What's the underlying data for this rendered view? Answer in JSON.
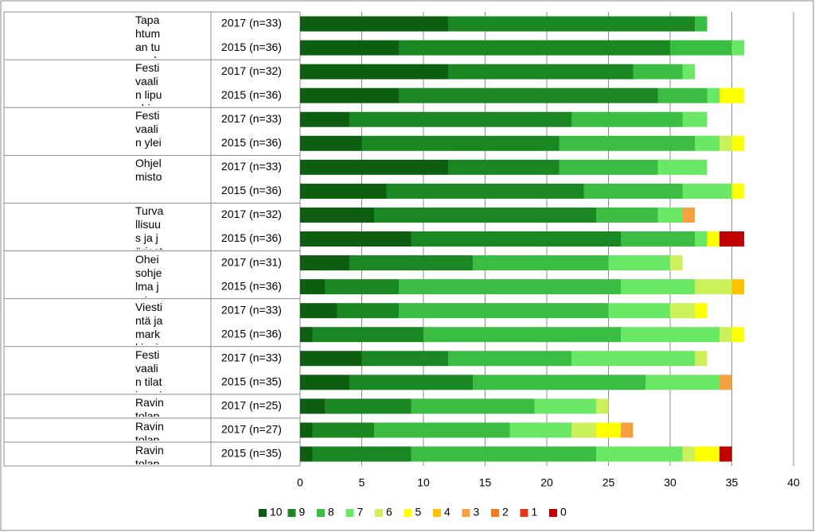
{
  "chart_data": {
    "type": "stacked_barh",
    "category_groups": [
      {
        "group": "Tapahtuman tunnelma",
        "labels": [
          "2017 (n=33)",
          "2015 (n=36)"
        ]
      },
      {
        "group": "Festivaalin lipunhinnan hinta-laatusuhde",
        "labels": [
          "2017 (n=32)",
          "2015 (n=36)"
        ]
      },
      {
        "group": "Festivaalin yleinen asiakaspalvelu",
        "labels": [
          "2017 (n=33)",
          "2015 (n=36)"
        ]
      },
      {
        "group": "Ohjelmisto",
        "labels": [
          "2017 (n=33)",
          "2015 (n=36)"
        ]
      },
      {
        "group": "Turvallisuus ja järjestyksenvalvonta",
        "labels": [
          "2017 (n=32)",
          "2015 (n=36)"
        ]
      },
      {
        "group": "Oheisohjelma ja tapahtumat",
        "labels": [
          "2017 (n=31)",
          "2015 (n=36)"
        ]
      },
      {
        "group": "Viestintä ja markkinointi",
        "labels": [
          "2017 (n=33)",
          "2015 (n=36)"
        ]
      },
      {
        "group": "Festivaalin tilat ja puitteet",
        "labels": [
          "2017 (n=33)",
          "2015 (n=35)"
        ]
      },
      {
        "group": "Ravintolapalvelut (anniskelu)",
        "labels": [
          "2017 (n=25)"
        ]
      },
      {
        "group": "Ravintolapalvelut (ruokailu)",
        "labels": [
          "2017 (n=27)"
        ]
      },
      {
        "group": "Ravintolapalvelut (ruokailu ja anniskelu)",
        "labels": [
          "2015 (n=35)"
        ]
      }
    ],
    "series": [
      {
        "name": "10",
        "color": "#0e5e12",
        "values": [
          12,
          8,
          12,
          8,
          4,
          5,
          12,
          7,
          6,
          9,
          4,
          2,
          3,
          1,
          5,
          4,
          2,
          1,
          1
        ]
      },
      {
        "name": "9",
        "color": "#1b8722",
        "values": [
          20,
          22,
          15,
          21,
          18,
          16,
          9,
          16,
          18,
          17,
          10,
          6,
          5,
          9,
          7,
          10,
          7,
          5,
          8
        ]
      },
      {
        "name": "8",
        "color": "#3bbd43",
        "values": [
          1,
          5,
          4,
          4,
          9,
          11,
          8,
          8,
          5,
          6,
          11,
          18,
          17,
          16,
          10,
          14,
          10,
          11,
          15
        ]
      },
      {
        "name": "7",
        "color": "#6ae865",
        "values": [
          0,
          1,
          1,
          1,
          2,
          2,
          4,
          4,
          2,
          1,
          5,
          6,
          5,
          8,
          10,
          6,
          5,
          5,
          7
        ]
      },
      {
        "name": "6",
        "color": "#ccf05a",
        "values": [
          0,
          0,
          0,
          0,
          0,
          1,
          0,
          0,
          0,
          0,
          1,
          3,
          2,
          1,
          1,
          0,
          1,
          2,
          1
        ]
      },
      {
        "name": "5",
        "color": "#ffff00",
        "values": [
          0,
          0,
          0,
          2,
          0,
          1,
          0,
          1,
          0,
          1,
          0,
          0,
          1,
          1,
          0,
          0,
          0,
          2,
          2
        ]
      },
      {
        "name": "4",
        "color": "#ffc000",
        "values": [
          0,
          0,
          0,
          0,
          0,
          0,
          0,
          0,
          0,
          0,
          0,
          1,
          0,
          0,
          0,
          0,
          0,
          0,
          0
        ]
      },
      {
        "name": "3",
        "color": "#f5a142",
        "values": [
          0,
          0,
          0,
          0,
          0,
          0,
          0,
          0,
          1,
          0,
          0,
          0,
          0,
          0,
          0,
          1,
          0,
          1,
          0
        ]
      },
      {
        "name": "2",
        "color": "#f47a20",
        "values": [
          0,
          0,
          0,
          0,
          0,
          0,
          0,
          0,
          0,
          0,
          0,
          0,
          0,
          0,
          0,
          0,
          0,
          0,
          0
        ]
      },
      {
        "name": "1",
        "color": "#e8381a",
        "values": [
          0,
          0,
          0,
          0,
          0,
          0,
          0,
          0,
          0,
          0,
          0,
          0,
          0,
          0,
          0,
          0,
          0,
          0,
          0
        ]
      },
      {
        "name": "0",
        "color": "#c00000",
        "values": [
          0,
          0,
          0,
          0,
          0,
          0,
          0,
          0,
          0,
          2,
          0,
          0,
          0,
          0,
          0,
          0,
          0,
          0,
          1
        ]
      }
    ],
    "xlim": [
      0,
      40
    ],
    "xticks": [
      0,
      5,
      10,
      15,
      20,
      25,
      30,
      35,
      40
    ],
    "grid": true,
    "legend": "bottom"
  }
}
